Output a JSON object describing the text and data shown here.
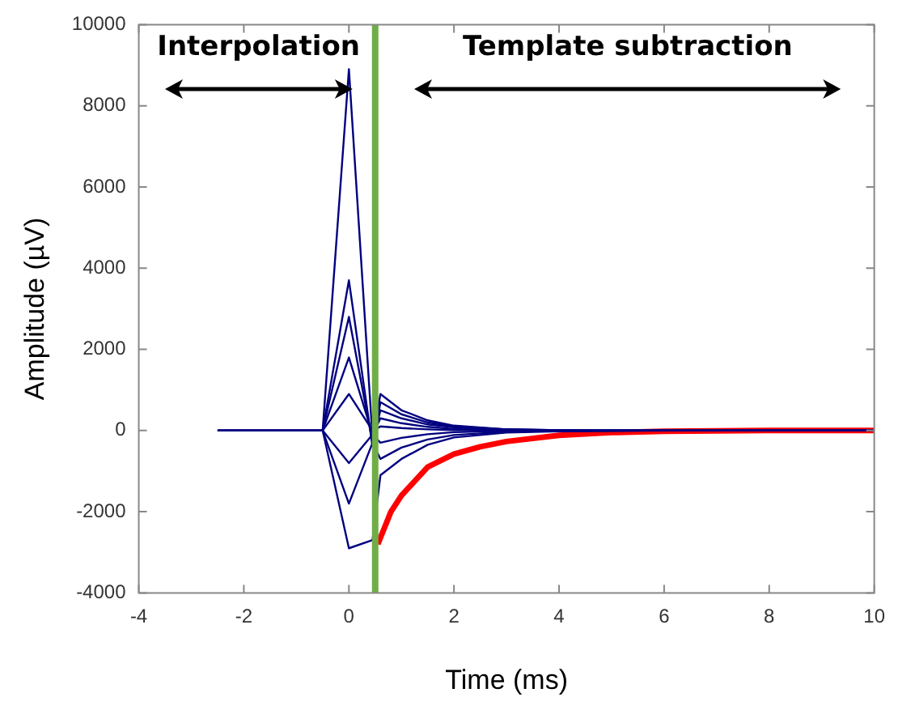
{
  "chart_data": {
    "type": "line",
    "xlabel": "Time (ms)",
    "ylabel": "Amplitude (µV)",
    "xlim": [
      -4,
      10
    ],
    "xticks": [
      -4,
      -2,
      0,
      2,
      4,
      6,
      8,
      10
    ],
    "ylim": [
      -4000,
      10000
    ],
    "yticks": [
      -4000,
      -2000,
      0,
      2000,
      4000,
      6000,
      8000,
      10000
    ],
    "grid": false,
    "legend": false,
    "marker": "none",
    "line_style": "solid",
    "x": [
      -2.5,
      -0.5,
      0,
      0.45,
      0.6,
      1,
      1.5,
      2,
      3,
      4,
      6,
      10
    ],
    "series": [
      {
        "color": "#000080",
        "values": [
          0,
          0,
          8900,
          -200,
          900,
          500,
          250,
          120,
          30,
          10,
          0,
          0
        ]
      },
      {
        "color": "#000080",
        "values": [
          0,
          0,
          3700,
          -400,
          700,
          400,
          200,
          100,
          30,
          10,
          0,
          0
        ]
      },
      {
        "color": "#000080",
        "values": [
          0,
          0,
          2800,
          -300,
          500,
          300,
          150,
          80,
          20,
          0,
          0,
          0
        ]
      },
      {
        "color": "#000080",
        "values": [
          0,
          0,
          1800,
          -100,
          300,
          180,
          90,
          40,
          10,
          0,
          0,
          0
        ]
      },
      {
        "color": "#000080",
        "values": [
          0,
          0,
          900,
          0,
          100,
          60,
          30,
          10,
          0,
          0,
          0,
          0
        ]
      },
      {
        "color": "#000080",
        "values": [
          0,
          0,
          -800,
          -100,
          -300,
          -180,
          -90,
          -40,
          -10,
          0,
          0,
          0
        ]
      },
      {
        "color": "#000080",
        "values": [
          0,
          0,
          -1800,
          -300,
          -700,
          -420,
          -220,
          -110,
          -30,
          -10,
          0,
          0
        ]
      },
      {
        "color": "#000080",
        "values": [
          0,
          0,
          -2900,
          -2700,
          -1100,
          -700,
          -350,
          -170,
          -50,
          -20,
          0,
          0
        ]
      },
      {
        "color": "#ff0000",
        "x": [
          0.55,
          0.8,
          1,
          1.5,
          2,
          2.5,
          3,
          4,
          5,
          6,
          8,
          10
        ],
        "values": [
          -2800,
          -2000,
          -1600,
          -900,
          -580,
          -400,
          -270,
          -120,
          -50,
          -20,
          0,
          0
        ]
      }
    ],
    "ref_lines": [
      {
        "axis": "x",
        "value": 0.5,
        "color": "#70ad47"
      }
    ],
    "annotations": [
      "Interpolation",
      "Template subtraction"
    ]
  }
}
